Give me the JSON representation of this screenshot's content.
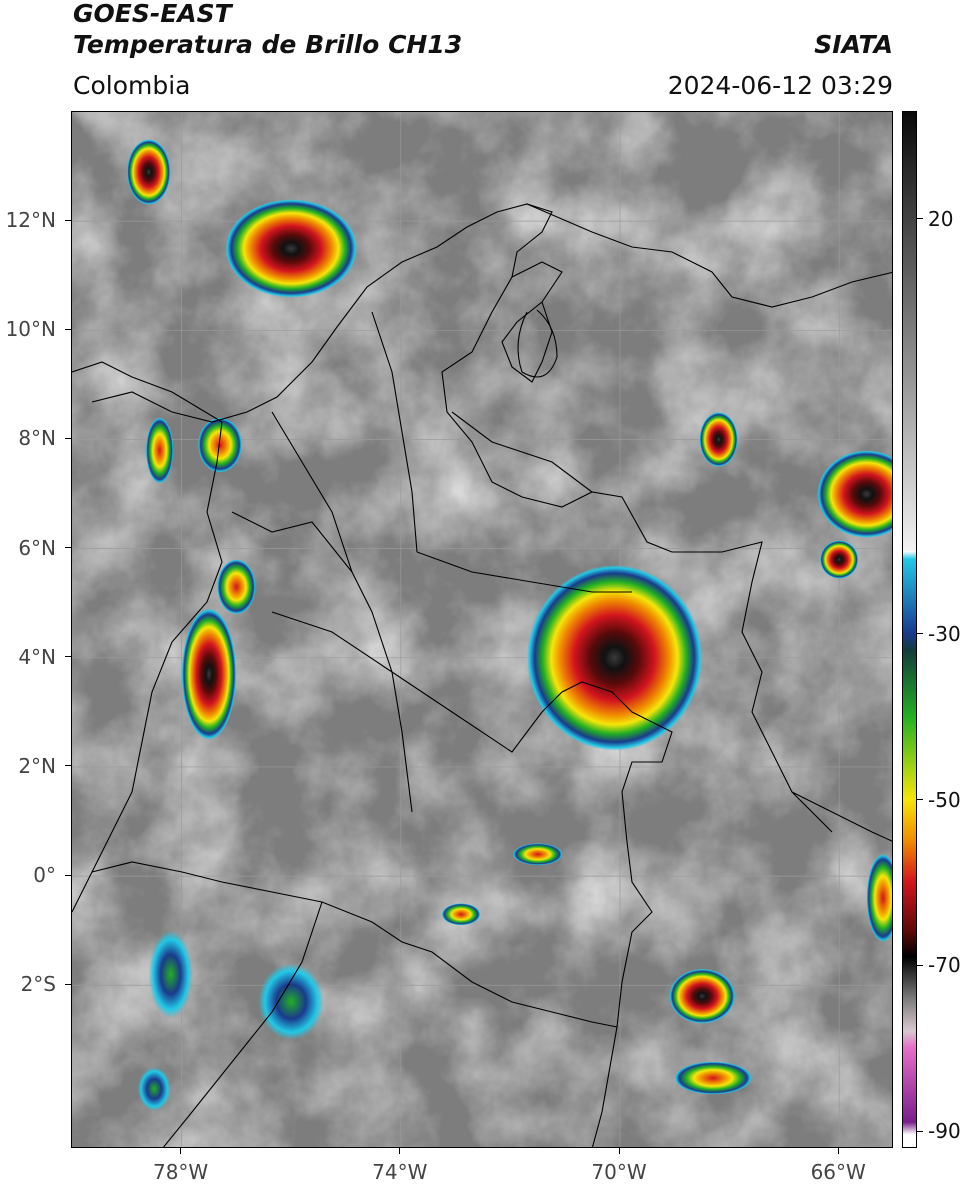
{
  "header": {
    "satellite": "GOES-EAST",
    "product": "Temperatura de Brillo CH13",
    "organization": "SIATA",
    "region": "Colombia",
    "datetime": "2024-06-12 03:29"
  },
  "map": {
    "lat_range": [
      -5,
      14
    ],
    "lon_range": [
      -80,
      -65
    ],
    "lat_labels": [
      {
        "lat": 12,
        "label": "12°N"
      },
      {
        "lat": 10,
        "label": "10°N"
      },
      {
        "lat": 8,
        "label": "8°N"
      },
      {
        "lat": 6,
        "label": "6°N"
      },
      {
        "lat": 4,
        "label": "4°N"
      },
      {
        "lat": 2,
        "label": "2°N"
      },
      {
        "lat": 0,
        "label": "0°"
      },
      {
        "lat": -2,
        "label": "2°S"
      }
    ],
    "lon_labels": [
      {
        "lon": -78,
        "label": "78°W"
      },
      {
        "lon": -74,
        "label": "74°W"
      },
      {
        "lon": -70,
        "label": "70°W"
      },
      {
        "lon": -66,
        "label": "66°W"
      }
    ],
    "storm_cells": [
      {
        "lon": -70.1,
        "lat": 4.0,
        "rx": 1.6,
        "ry": 1.7,
        "peak": -72
      },
      {
        "lon": -76.0,
        "lat": 11.5,
        "rx": 1.2,
        "ry": 0.9,
        "peak": -75
      },
      {
        "lon": -77.5,
        "lat": 3.7,
        "rx": 0.5,
        "ry": 1.2,
        "peak": -65
      },
      {
        "lon": -65.5,
        "lat": 7.0,
        "rx": 0.9,
        "ry": 0.8,
        "peak": -62
      },
      {
        "lon": -68.2,
        "lat": 8.0,
        "rx": 0.35,
        "ry": 0.5,
        "peak": -60
      },
      {
        "lon": -68.5,
        "lat": -2.2,
        "rx": 0.6,
        "ry": 0.5,
        "peak": -62
      },
      {
        "lon": -78.6,
        "lat": 12.9,
        "rx": 0.4,
        "ry": 0.6,
        "peak": -66
      },
      {
        "lon": -77.0,
        "lat": 5.3,
        "rx": 0.35,
        "ry": 0.5,
        "peak": -55
      },
      {
        "lon": -77.3,
        "lat": 7.9,
        "rx": 0.4,
        "ry": 0.5,
        "peak": -55
      },
      {
        "lon": -78.4,
        "lat": 7.8,
        "rx": 0.25,
        "ry": 0.6,
        "peak": -50
      },
      {
        "lon": -66.0,
        "lat": 5.8,
        "rx": 0.35,
        "ry": 0.35,
        "peak": -70
      },
      {
        "lon": -68.3,
        "lat": -3.7,
        "rx": 0.7,
        "ry": 0.3,
        "peak": -55
      },
      {
        "lon": -72.9,
        "lat": -0.7,
        "rx": 0.35,
        "ry": 0.2,
        "peak": -50
      },
      {
        "lon": -71.5,
        "lat": 0.4,
        "rx": 0.45,
        "ry": 0.2,
        "peak": -55
      },
      {
        "lon": -76.0,
        "lat": -2.3,
        "rx": 0.6,
        "ry": 0.7,
        "peak": -40
      },
      {
        "lon": -78.2,
        "lat": -1.8,
        "rx": 0.4,
        "ry": 0.8,
        "peak": -35
      },
      {
        "lon": -78.5,
        "lat": -3.9,
        "rx": 0.3,
        "ry": 0.4,
        "peak": -38
      },
      {
        "lon": -65.2,
        "lat": -0.4,
        "rx": 0.3,
        "ry": 0.8,
        "peak": -52
      }
    ]
  },
  "colorbar": {
    "range": [
      -92,
      33
    ],
    "labels": [
      {
        "value": 20,
        "label": "20"
      },
      {
        "value": -30,
        "label": "-30"
      },
      {
        "value": -50,
        "label": "-50"
      },
      {
        "value": -70,
        "label": "-70"
      },
      {
        "value": -90,
        "label": "-90"
      }
    ],
    "colors": {
      "warm_gray_top": "#0a0a0a",
      "warm_gray_bottom": "#f2f2f2",
      "cyan": "#22c8e6",
      "blue": "#1a3a8c",
      "green": "#22b022",
      "yellow": "#f5e60a",
      "orange": "#f08c00",
      "red": "#d2141e",
      "dark_red": "#5a0a0a",
      "black": "#000000",
      "pink": "#e66ec8",
      "purple": "#7a1e8c"
    }
  }
}
